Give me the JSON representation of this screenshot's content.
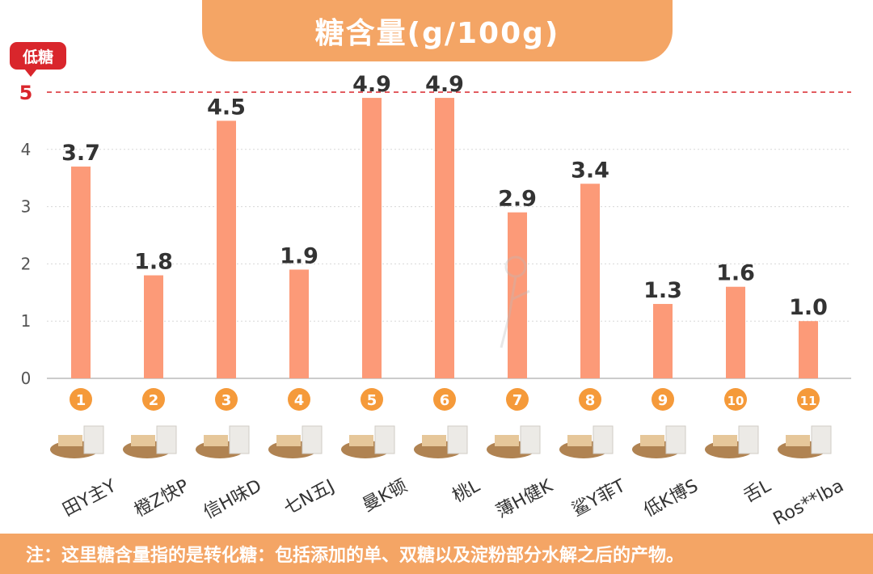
{
  "title": "糖含量(g/100g)",
  "badge": "低糖",
  "threshold": {
    "value": 5,
    "label": "5"
  },
  "footer_note": "注：这里糖含量指的是转化糖：包括添加的单、双糖以及淀粉部分水解之后的产物。",
  "colors": {
    "bar": "#fc9a78",
    "accent": "#f4a565",
    "threshold": "#d9262c",
    "circle": "#f59a3a",
    "value_text": "#333333"
  },
  "chart_data": {
    "type": "bar",
    "title": "糖含量(g/100g)",
    "xlabel": "",
    "ylabel": "",
    "ylim": [
      0,
      5
    ],
    "yticks": [
      0,
      1,
      2,
      3,
      4,
      5
    ],
    "grid": true,
    "categories": [
      "田Y主Y",
      "橙Z快P",
      "信H味D",
      "七N五J",
      "曼K顿",
      "桃L",
      "薄H健K",
      "鲨Y菲T",
      "低K博S",
      "舌L",
      "Ros**lba"
    ],
    "numbers": [
      "1",
      "2",
      "3",
      "4",
      "5",
      "6",
      "7",
      "8",
      "9",
      "10",
      "11"
    ],
    "values": [
      3.7,
      1.8,
      4.5,
      1.9,
      4.9,
      4.9,
      2.9,
      3.4,
      1.3,
      1.6,
      1.0
    ],
    "value_labels": [
      "3.7",
      "1.8",
      "4.5",
      "1.9",
      "4.9",
      "4.9",
      "2.9",
      "3.4",
      "1.3",
      "1.6",
      "1.0"
    ]
  }
}
